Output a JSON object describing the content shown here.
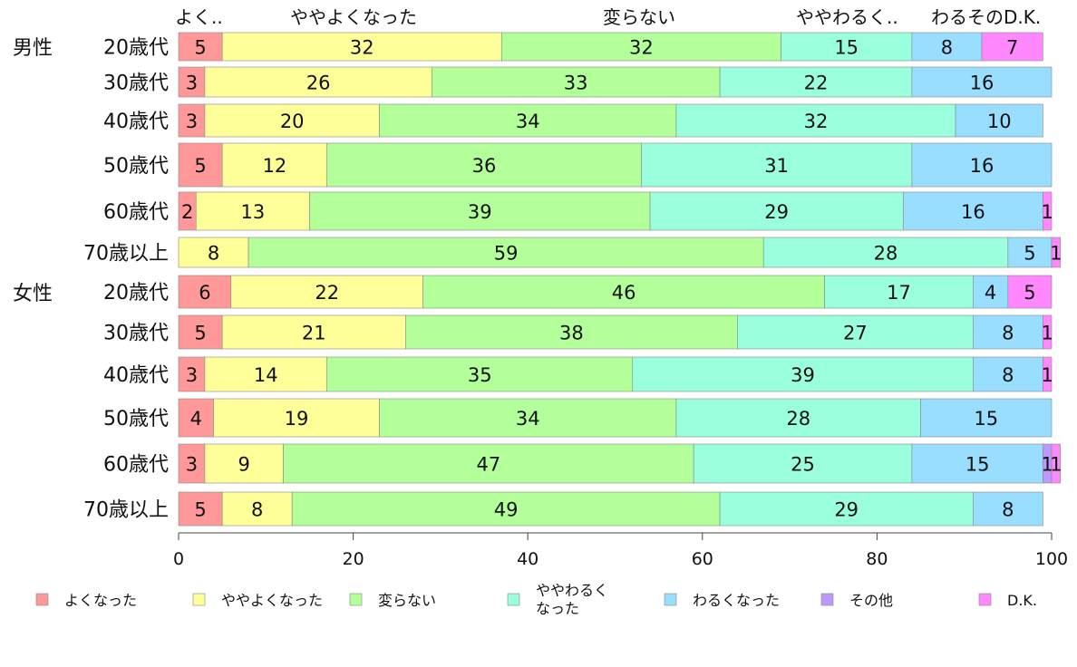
{
  "chart_data": {
    "type": "bar",
    "orientation": "horizontal",
    "stacked": true,
    "title": "",
    "xlabel": "",
    "ylabel": "",
    "xlim": [
      0,
      100
    ],
    "xticks": [
      "0",
      "20",
      "40",
      "60",
      "80",
      "100"
    ],
    "top_labels": [
      "よく..",
      "ややよくなった",
      "変らない",
      "ややわるく..",
      "わるそのD.K."
    ],
    "group_labels": [
      "男性",
      "女性"
    ],
    "categories": [
      "20歳代",
      "30歳代",
      "40歳代",
      "50歳代",
      "60歳代",
      "70歳以上",
      "20歳代",
      "30歳代",
      "40歳代",
      "50歳代",
      "60歳代",
      "70歳以上"
    ],
    "legend_position": "bottom",
    "series": [
      {
        "name": "よくなった",
        "color": "#ff9999",
        "values": [
          5,
          3,
          3,
          5,
          2,
          0,
          6,
          5,
          3,
          4,
          3,
          5
        ]
      },
      {
        "name": "ややよくなった",
        "color": "#ffff99",
        "values": [
          32,
          26,
          20,
          12,
          13,
          8,
          22,
          21,
          14,
          19,
          9,
          8
        ]
      },
      {
        "name": "変らない",
        "color": "#b3ff99",
        "values": [
          32,
          33,
          34,
          36,
          39,
          59,
          46,
          38,
          35,
          34,
          47,
          49
        ]
      },
      {
        "name": "ややわるく なった",
        "color": "#99ffdd",
        "values": [
          15,
          22,
          32,
          31,
          29,
          28,
          17,
          27,
          39,
          28,
          25,
          29
        ]
      },
      {
        "name": "わるくなった",
        "color": "#99ddff",
        "values": [
          8,
          16,
          10,
          16,
          16,
          5,
          4,
          8,
          8,
          15,
          15,
          8
        ]
      },
      {
        "name": "その他",
        "color": "#bb99ff",
        "values": [
          0,
          0,
          0,
          0,
          0,
          0,
          0,
          0,
          0,
          0,
          1,
          0
        ]
      },
      {
        "name": "D.K.",
        "color": "#ff88ff",
        "values": [
          7,
          0,
          0,
          0,
          1,
          1,
          5,
          1,
          1,
          0,
          1,
          0
        ]
      }
    ]
  }
}
